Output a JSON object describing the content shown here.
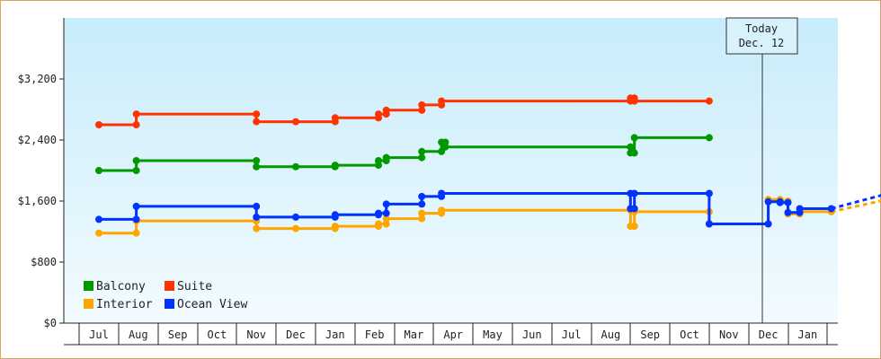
{
  "chart_data": {
    "type": "line",
    "title": "",
    "xlabel": "",
    "ylabel": "",
    "ylim": [
      0,
      4000
    ],
    "y_ticks": [
      {
        "value": 0,
        "label": "$0"
      },
      {
        "value": 800,
        "label": "$800"
      },
      {
        "value": 1600,
        "label": "$1,600"
      },
      {
        "value": 2400,
        "label": "$2,400"
      },
      {
        "value": 3200,
        "label": "$3,200"
      }
    ],
    "x_months": [
      "Jul",
      "Aug",
      "Sep",
      "Oct",
      "Nov",
      "Dec",
      "Jan",
      "Feb",
      "Mar",
      "Apr",
      "May",
      "Jun",
      "Jul",
      "Aug",
      "Sep",
      "Oct",
      "Nov",
      "Dec",
      "Jan"
    ],
    "grid": false,
    "legend_position": "bottom-left",
    "today": {
      "line1": "Today",
      "line2": "Dec. 12"
    },
    "series": [
      {
        "name": "Suite",
        "color": "#ff3300",
        "points": [
          [
            0,
            2600
          ],
          [
            0.95,
            2600
          ],
          [
            0.95,
            2740
          ],
          [
            4,
            2740
          ],
          [
            4,
            2640
          ],
          [
            5,
            2640
          ],
          [
            6,
            2640
          ],
          [
            6,
            2690
          ],
          [
            7.1,
            2690
          ],
          [
            7.1,
            2740
          ],
          [
            7.3,
            2740
          ],
          [
            7.3,
            2790
          ],
          [
            8.2,
            2790
          ],
          [
            8.2,
            2860
          ],
          [
            8.7,
            2860
          ],
          [
            8.7,
            2910
          ],
          [
            13.5,
            2910
          ],
          [
            13.5,
            2950
          ],
          [
            13.6,
            2950
          ],
          [
            13.6,
            2910
          ],
          [
            15.5,
            2910
          ]
        ]
      },
      {
        "name": "Balcony",
        "color": "#009900",
        "points": [
          [
            0,
            2000
          ],
          [
            0.95,
            2000
          ],
          [
            0.95,
            2130
          ],
          [
            4,
            2130
          ],
          [
            4,
            2050
          ],
          [
            5,
            2050
          ],
          [
            6,
            2050
          ],
          [
            6,
            2070
          ],
          [
            7.1,
            2070
          ],
          [
            7.1,
            2130
          ],
          [
            7.3,
            2130
          ],
          [
            7.3,
            2170
          ],
          [
            8.2,
            2170
          ],
          [
            8.2,
            2250
          ],
          [
            8.7,
            2250
          ],
          [
            8.7,
            2370
          ],
          [
            8.8,
            2370
          ],
          [
            8.8,
            2310
          ],
          [
            13.5,
            2310
          ],
          [
            13.5,
            2230
          ],
          [
            13.6,
            2230
          ],
          [
            13.6,
            2430
          ],
          [
            15.5,
            2430
          ]
        ]
      },
      {
        "name": "Interior",
        "color": "#ffa500",
        "points": [
          [
            0,
            1180
          ],
          [
            0.95,
            1180
          ],
          [
            0.95,
            1340
          ],
          [
            4,
            1340
          ],
          [
            4,
            1240
          ],
          [
            5,
            1240
          ],
          [
            6,
            1240
          ],
          [
            6,
            1270
          ],
          [
            7.1,
            1270
          ],
          [
            7.1,
            1300
          ],
          [
            7.3,
            1300
          ],
          [
            7.3,
            1370
          ],
          [
            8.2,
            1370
          ],
          [
            8.2,
            1440
          ],
          [
            8.7,
            1440
          ],
          [
            8.7,
            1480
          ],
          [
            13.5,
            1480
          ],
          [
            13.5,
            1270
          ],
          [
            13.6,
            1270
          ],
          [
            13.6,
            1460
          ],
          [
            15.5,
            1460
          ],
          [
            15.5,
            1300
          ],
          [
            17,
            1300
          ],
          [
            17,
            1620
          ],
          [
            17.3,
            1620
          ],
          [
            17.3,
            1600
          ],
          [
            17.5,
            1600
          ],
          [
            17.5,
            1430
          ],
          [
            17.8,
            1430
          ],
          [
            17.8,
            1460
          ],
          [
            18.6,
            1460
          ]
        ]
      },
      {
        "name": "Ocean View",
        "color": "#0033ff",
        "points": [
          [
            0,
            1360
          ],
          [
            0.95,
            1360
          ],
          [
            0.95,
            1530
          ],
          [
            4,
            1530
          ],
          [
            4,
            1390
          ],
          [
            5,
            1390
          ],
          [
            6,
            1390
          ],
          [
            6,
            1420
          ],
          [
            7.1,
            1420
          ],
          [
            7.1,
            1440
          ],
          [
            7.3,
            1440
          ],
          [
            7.3,
            1560
          ],
          [
            8.2,
            1560
          ],
          [
            8.2,
            1660
          ],
          [
            8.7,
            1660
          ],
          [
            8.7,
            1700
          ],
          [
            13.5,
            1700
          ],
          [
            13.5,
            1500
          ],
          [
            13.6,
            1500
          ],
          [
            13.6,
            1700
          ],
          [
            15.5,
            1700
          ],
          [
            15.5,
            1300
          ],
          [
            17,
            1300
          ],
          [
            17,
            1590
          ],
          [
            17.3,
            1590
          ],
          [
            17.3,
            1580
          ],
          [
            17.5,
            1580
          ],
          [
            17.5,
            1450
          ],
          [
            17.8,
            1450
          ],
          [
            17.8,
            1500
          ],
          [
            18.6,
            1500
          ]
        ]
      }
    ],
    "projection": [
      {
        "name": "Ocean View",
        "color": "#0033ff",
        "points": [
          [
            18.6,
            1500
          ],
          [
            20.2,
            1720
          ]
        ]
      },
      {
        "name": "Interior",
        "color": "#ffa500",
        "points": [
          [
            18.6,
            1460
          ],
          [
            20.2,
            1640
          ]
        ]
      }
    ],
    "legend": [
      {
        "name": "Balcony",
        "color": "#009900"
      },
      {
        "name": "Suite",
        "color": "#ff3300"
      },
      {
        "name": "Interior",
        "color": "#ffa500"
      },
      {
        "name": "Ocean View",
        "color": "#0033ff"
      }
    ]
  }
}
